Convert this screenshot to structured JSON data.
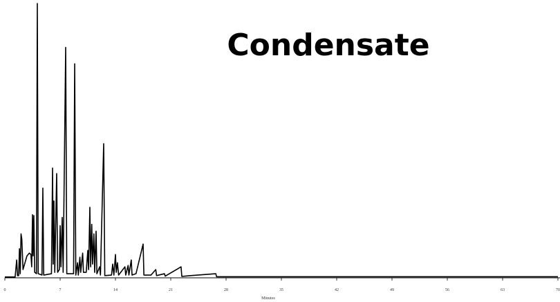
{
  "chart_data": {
    "type": "line",
    "title": "Condensate",
    "x_label": "Minutes",
    "x": [
      0,
      1.3,
      1.5,
      1.6,
      1.75,
      1.85,
      1.95,
      2.05,
      2.15,
      2.3,
      2.5,
      2.8,
      3.1,
      3.3,
      3.4,
      3.5,
      3.58,
      3.67,
      3.78,
      4.0,
      4.11,
      4.22,
      4.7,
      4.81,
      4.92,
      5.9,
      6.04,
      6.12,
      6.21,
      6.32,
      6.56,
      6.68,
      6.9,
      7.0,
      7.1,
      7.26,
      7.38,
      7.7,
      7.84,
      8.7,
      8.84,
      8.98,
      9.2,
      9.3,
      9.5,
      9.6,
      9.85,
      9.95,
      10.3,
      10.5,
      10.6,
      10.76,
      10.86,
      11.0,
      11.1,
      11.27,
      11.37,
      11.55,
      11.65,
      12.0,
      12.1,
      12.51,
      12.65,
      13.5,
      13.65,
      13.8,
      14.0,
      14.1,
      14.25,
      14.4,
      15.2,
      15.3,
      15.6,
      15.7,
      16.0,
      16.1,
      16.6,
      17.5,
      17.6,
      18.5,
      19.1,
      19.2,
      20.2,
      20.3,
      22.3,
      22.4,
      23.5,
      26.7,
      26.8,
      30,
      47,
      60,
      70
    ],
    "series": [
      {
        "color": "#000000",
        "values": [
          0.3,
          0.3,
          6.5,
          0.8,
          0.8,
          10.6,
          1.5,
          16,
          14,
          3,
          5,
          8,
          9,
          8.5,
          4,
          23,
          8,
          22.7,
          2,
          1.5,
          100,
          1.5,
          1,
          32.7,
          1,
          1.5,
          40,
          5,
          28,
          2,
          38,
          2,
          3,
          19,
          4,
          22,
          2,
          84,
          1.5,
          1.5,
          78,
          1,
          5.5,
          1,
          7.5,
          2,
          9,
          2,
          2,
          10,
          3,
          25.7,
          4,
          19.5,
          5,
          16,
          2,
          17,
          1.5,
          4,
          1,
          48.9,
          0.8,
          1,
          5,
          1,
          8.5,
          2,
          5.5,
          1,
          4,
          1,
          4.5,
          1,
          6.5,
          1,
          1.5,
          12.3,
          1,
          1,
          3,
          0.8,
          1.5,
          0.6,
          4,
          0.5,
          0.8,
          1.5,
          0.4,
          0.4,
          0.4,
          0.4,
          0.4
        ]
      }
    ],
    "xlim": [
      0,
      70
    ],
    "xticks": [
      0,
      7,
      14,
      21,
      28,
      35,
      42,
      49,
      56,
      63,
      70
    ],
    "ylim": [
      0,
      100
    ]
  }
}
